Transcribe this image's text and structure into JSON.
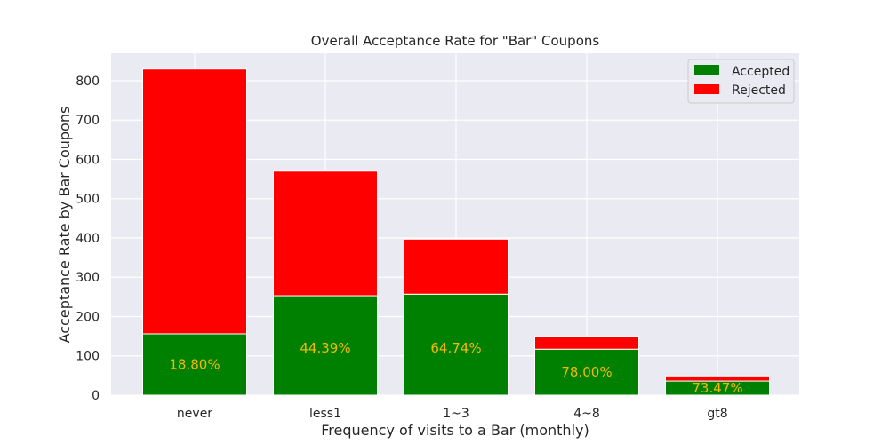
{
  "chart_data": {
    "type": "bar",
    "stacked": true,
    "title": "Overall Acceptance Rate for \"Bar\" Coupons",
    "xlabel": "Frequency of visits to a Bar (monthly)",
    "ylabel": "Acceptance Rate by Bar Coupons",
    "categories": [
      "never",
      "less1",
      "1~3",
      "4~8",
      "gt8"
    ],
    "series": [
      {
        "name": "Accepted",
        "color": "#008000",
        "values": [
          156,
          253,
          257,
          117,
          36
        ]
      },
      {
        "name": "Rejected",
        "color": "#ff0000",
        "values": [
          674,
          317,
          140,
          33,
          13
        ]
      }
    ],
    "data_labels": [
      "18.80%",
      "44.39%",
      "64.74%",
      "78.00%",
      "73.47%"
    ],
    "data_label_color": "#f5b800",
    "ylim": [
      0,
      870
    ],
    "yticks": [
      0,
      100,
      200,
      300,
      400,
      500,
      600,
      700,
      800
    ],
    "grid": true,
    "legend_position": "top-right",
    "background_color": "#eaeaf2"
  }
}
